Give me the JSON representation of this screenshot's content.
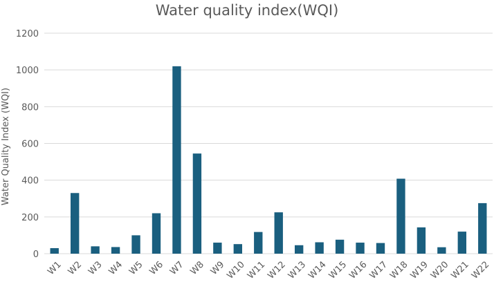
{
  "chart_data": {
    "type": "bar",
    "title": "Water quality index(WQI)",
    "xlabel": "",
    "ylabel": "Water Quality Index (WQI)",
    "ylim": [
      0,
      1200
    ],
    "yticks": [
      0,
      200,
      400,
      600,
      800,
      1000,
      1200
    ],
    "grid": true,
    "legend": "none",
    "categories": [
      "W1",
      "W2",
      "W3",
      "W4",
      "W5",
      "W6",
      "W7",
      "W8",
      "W9",
      "W10",
      "W11",
      "W12",
      "W13",
      "W14",
      "W15",
      "W16",
      "W17",
      "W18",
      "W19",
      "W20",
      "W21",
      "W22"
    ],
    "values": [
      30,
      330,
      40,
      36,
      100,
      220,
      1020,
      545,
      60,
      52,
      118,
      225,
      46,
      62,
      76,
      60,
      58,
      408,
      143,
      35,
      120,
      275
    ],
    "bar_color": "#1a5f7f"
  }
}
